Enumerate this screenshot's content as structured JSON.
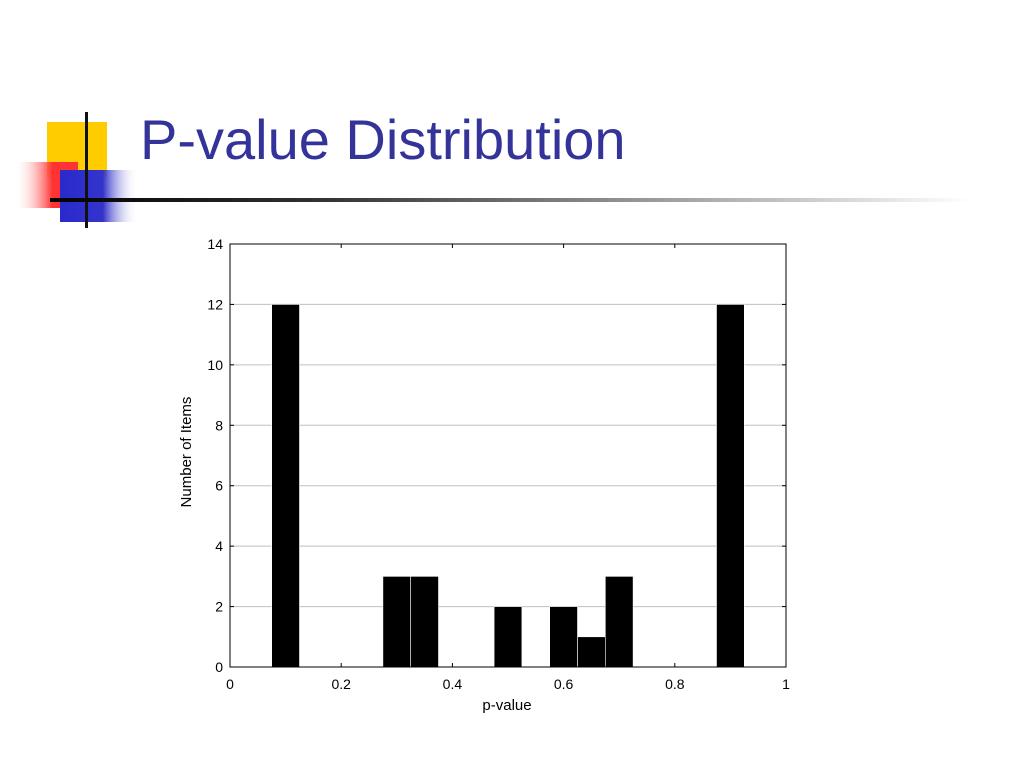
{
  "slide": {
    "title": "P-value Distribution"
  },
  "colors": {
    "title": "#333399",
    "bars": "#000000",
    "grid": "#c0c0c0",
    "decor_yellow": "#ffcc00",
    "decor_red": "#ff3333",
    "decor_blue": "#3333cc"
  },
  "chart_data": {
    "type": "bar",
    "title": "",
    "xlabel": "p-value",
    "ylabel": "Number of Items",
    "xlim": [
      0,
      1
    ],
    "ylim": [
      0,
      14
    ],
    "xticks": [
      0,
      0.2,
      0.4,
      0.6,
      0.8,
      1
    ],
    "xtick_labels": [
      "0",
      "0.2",
      "0.4",
      "0.6",
      "0.8",
      "1"
    ],
    "yticks": [
      0,
      2,
      4,
      6,
      8,
      10,
      12,
      14
    ],
    "ytick_labels": [
      "0",
      "2",
      "4",
      "6",
      "8",
      "10",
      "12",
      "14"
    ],
    "grid": "horizontal",
    "legend": "none",
    "bin_width": 0.05,
    "bins": [
      {
        "x_start": 0.075,
        "value": 12
      },
      {
        "x_start": 0.275,
        "value": 3
      },
      {
        "x_start": 0.325,
        "value": 3
      },
      {
        "x_start": 0.475,
        "value": 2
      },
      {
        "x_start": 0.575,
        "value": 2
      },
      {
        "x_start": 0.625,
        "value": 1
      },
      {
        "x_start": 0.675,
        "value": 3
      },
      {
        "x_start": 0.875,
        "value": 12
      }
    ]
  }
}
